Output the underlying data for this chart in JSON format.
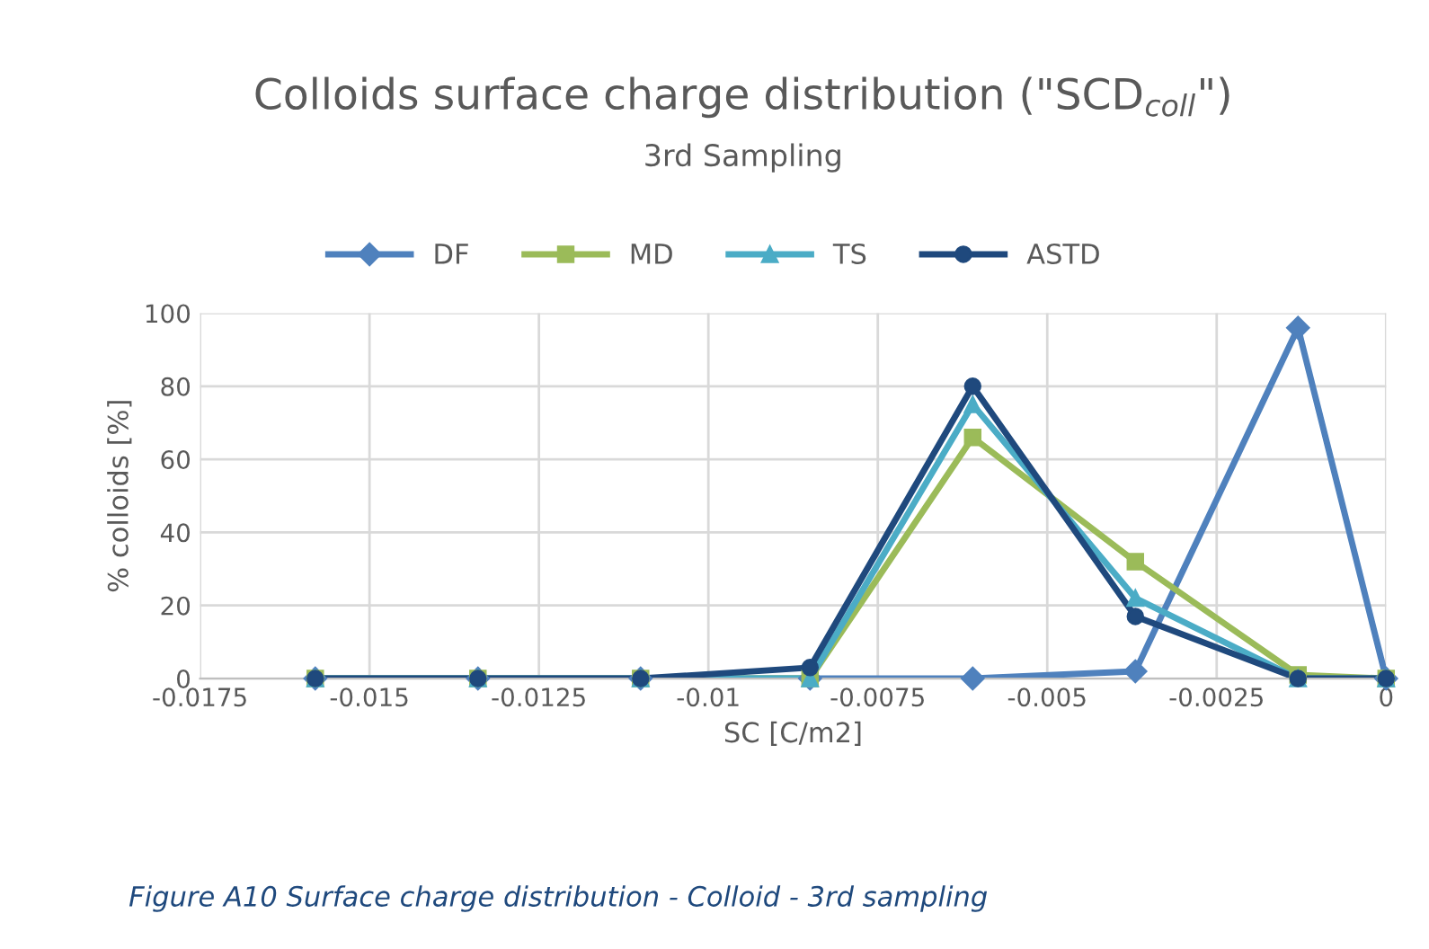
{
  "chart_data": {
    "type": "line",
    "title": "Colloids surface charge distribution (\"SCD$_{coll}$\")",
    "subtitle": "3rd Sampling",
    "xlabel": "SC [C/m2]",
    "ylabel": "% colloids [%]",
    "x": [
      -0.0158,
      -0.0134,
      -0.011,
      -0.0085,
      -0.0061,
      -0.0037,
      -0.0013,
      0
    ],
    "series": [
      {
        "name": "DF",
        "color": "#4f81bd",
        "marker": "diamond",
        "values": [
          0,
          0,
          0,
          0,
          0,
          2,
          96,
          0
        ]
      },
      {
        "name": "MD",
        "color": "#9bbb59",
        "marker": "square",
        "values": [
          0,
          0,
          0,
          0,
          66,
          32,
          1,
          0
        ]
      },
      {
        "name": "TS",
        "color": "#4bacc6",
        "marker": "triangle",
        "values": [
          0,
          0,
          0,
          0,
          75,
          22,
          0,
          0
        ]
      },
      {
        "name": "ASTD",
        "color": "#1f497d",
        "marker": "circle",
        "values": [
          0,
          0,
          0,
          3,
          80,
          17,
          0,
          0
        ]
      }
    ],
    "xlim": [
      -0.0175,
      0
    ],
    "xticks": [
      {
        "value": -0.0175,
        "label": "-0.0175"
      },
      {
        "value": -0.015,
        "label": "-0.015"
      },
      {
        "value": -0.0125,
        "label": "-0.0125"
      },
      {
        "value": -0.01,
        "label": "-0.01"
      },
      {
        "value": -0.0075,
        "label": "-0.0075"
      },
      {
        "value": -0.005,
        "label": "-0.005"
      },
      {
        "value": -0.0025,
        "label": "-0.0025"
      },
      0
    ],
    "ylim": [
      0,
      100
    ],
    "yticks": [
      0,
      20,
      40,
      60,
      80,
      100
    ],
    "grid": true,
    "legend": "top",
    "annotations": [
      "Figure A10 Surface charge distribution - Colloid - 3rd sampling"
    ]
  }
}
